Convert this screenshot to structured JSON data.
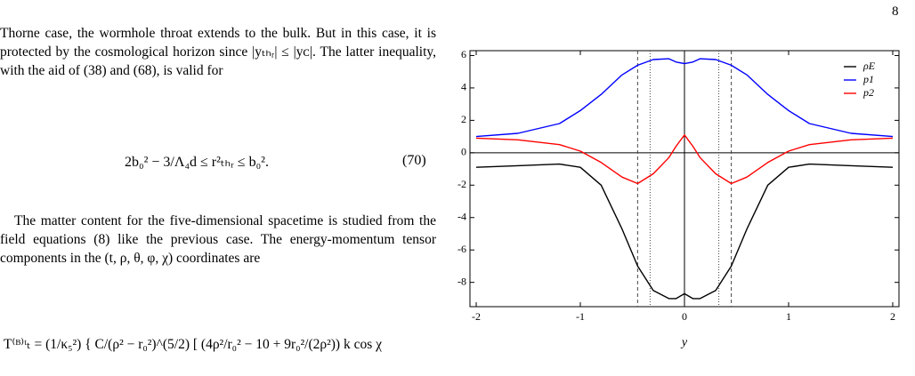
{
  "page_number": "8",
  "text": {
    "paragraph_1": "Thorne case, the wormhole throat extends to the bulk. But in this case, it is protected by the cosmological horizon since |yₜₕᵣ| ≤ |yᴄ|. The latter inequality, with the aid of (38) and (68), is valid for",
    "equation_70": "2b₀² − 3/Λ₄d ≤ r²ₜₕᵣ ≤ b₀².",
    "equation_70_number": "(70)",
    "paragraph_2": "The matter content for the five-dimensional spacetime is studied from the field equations (8) like the previous case. The energy-momentum tensor components in the (t, ρ, θ, φ, χ) coordinates are",
    "equation_71": "T⁽ᴮ⁾ᵗₜ = (1/κ₅²) { C/(ρ² − r₀²)^(5/2) [ (4ρ²/r₀² − 10 + 9r₀²/(2ρ²)) k cos χ"
  },
  "chart_data": {
    "type": "line",
    "x_label": "y",
    "x": [
      -2,
      -1.6,
      -1.2,
      -1,
      -0.8,
      -0.6,
      -0.45,
      -0.3,
      -0.15,
      -0.08,
      0,
      0.08,
      0.15,
      0.3,
      0.45,
      0.6,
      0.8,
      1,
      1.2,
      1.6,
      2
    ],
    "series": [
      {
        "name": "ρE",
        "color": "#000000",
        "values": [
          -0.9,
          -0.8,
          -0.7,
          -0.9,
          -2.0,
          -4.7,
          -7.0,
          -8.5,
          -9.0,
          -9.0,
          -8.7,
          -9.0,
          -9.0,
          -8.5,
          -7.0,
          -4.7,
          -2.0,
          -0.9,
          -0.7,
          -0.8,
          -0.9
        ]
      },
      {
        "name": "p1",
        "color": "#0000ff",
        "values": [
          1.0,
          1.2,
          1.8,
          2.6,
          3.6,
          4.8,
          5.4,
          5.75,
          5.8,
          5.6,
          5.5,
          5.6,
          5.8,
          5.75,
          5.4,
          4.8,
          3.6,
          2.6,
          1.8,
          1.2,
          1.0
        ]
      },
      {
        "name": "p2",
        "color": "#ff0000",
        "values": [
          0.9,
          0.8,
          0.5,
          0.1,
          -0.6,
          -1.5,
          -1.9,
          -1.3,
          -0.3,
          0.4,
          1.1,
          0.4,
          -0.3,
          -1.3,
          -1.9,
          -1.5,
          -0.6,
          0.1,
          0.5,
          0.8,
          0.9
        ]
      }
    ],
    "reference_lines": [
      {
        "x": -0.45,
        "style": "dashed"
      },
      {
        "x": 0.45,
        "style": "dashed"
      },
      {
        "x": -0.33,
        "style": "dotted"
      },
      {
        "x": 0.33,
        "style": "dotted"
      }
    ],
    "xlim": [
      -2.06,
      2.06
    ],
    "ylim": [
      -9.5,
      6.3
    ],
    "xticks": [
      -2,
      -1,
      0,
      1,
      2
    ],
    "yticks": [
      -8,
      -6,
      -4,
      -2,
      0,
      2,
      4,
      6
    ],
    "legend": "upper right"
  }
}
